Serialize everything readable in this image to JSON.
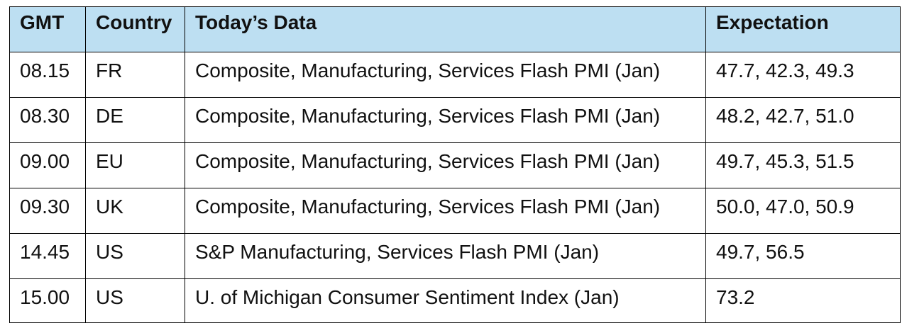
{
  "table": {
    "headers": {
      "gmt": "GMT",
      "country": "Country",
      "data": "Today’s Data",
      "expectation": "Expectation"
    },
    "rows": [
      {
        "gmt": "08.15",
        "country": "FR",
        "data": "Composite, Manufacturing, Services Flash PMI (Jan)",
        "expectation": "47.7, 42.3, 49.3"
      },
      {
        "gmt": "08.30",
        "country": "DE",
        "data": "Composite, Manufacturing, Services Flash PMI (Jan)",
        "expectation": "48.2, 42.7, 51.0"
      },
      {
        "gmt": "09.00",
        "country": "EU",
        "data": "Composite, Manufacturing, Services Flash PMI (Jan)",
        "expectation": "49.7, 45.3, 51.5"
      },
      {
        "gmt": "09.30",
        "country": "UK",
        "data": "Composite, Manufacturing, Services Flash PMI (Jan)",
        "expectation": "50.0, 47.0, 50.9"
      },
      {
        "gmt": "14.45",
        "country": "US",
        "data": "S&P Manufacturing, Services Flash PMI (Jan)",
        "expectation": "49.7, 56.5"
      },
      {
        "gmt": "15.00",
        "country": "US",
        "data": "U. of Michigan Consumer Sentiment Index (Jan)",
        "expectation": "73.2"
      }
    ]
  },
  "colors": {
    "header_background": "#bddff2",
    "border": "#000000"
  }
}
